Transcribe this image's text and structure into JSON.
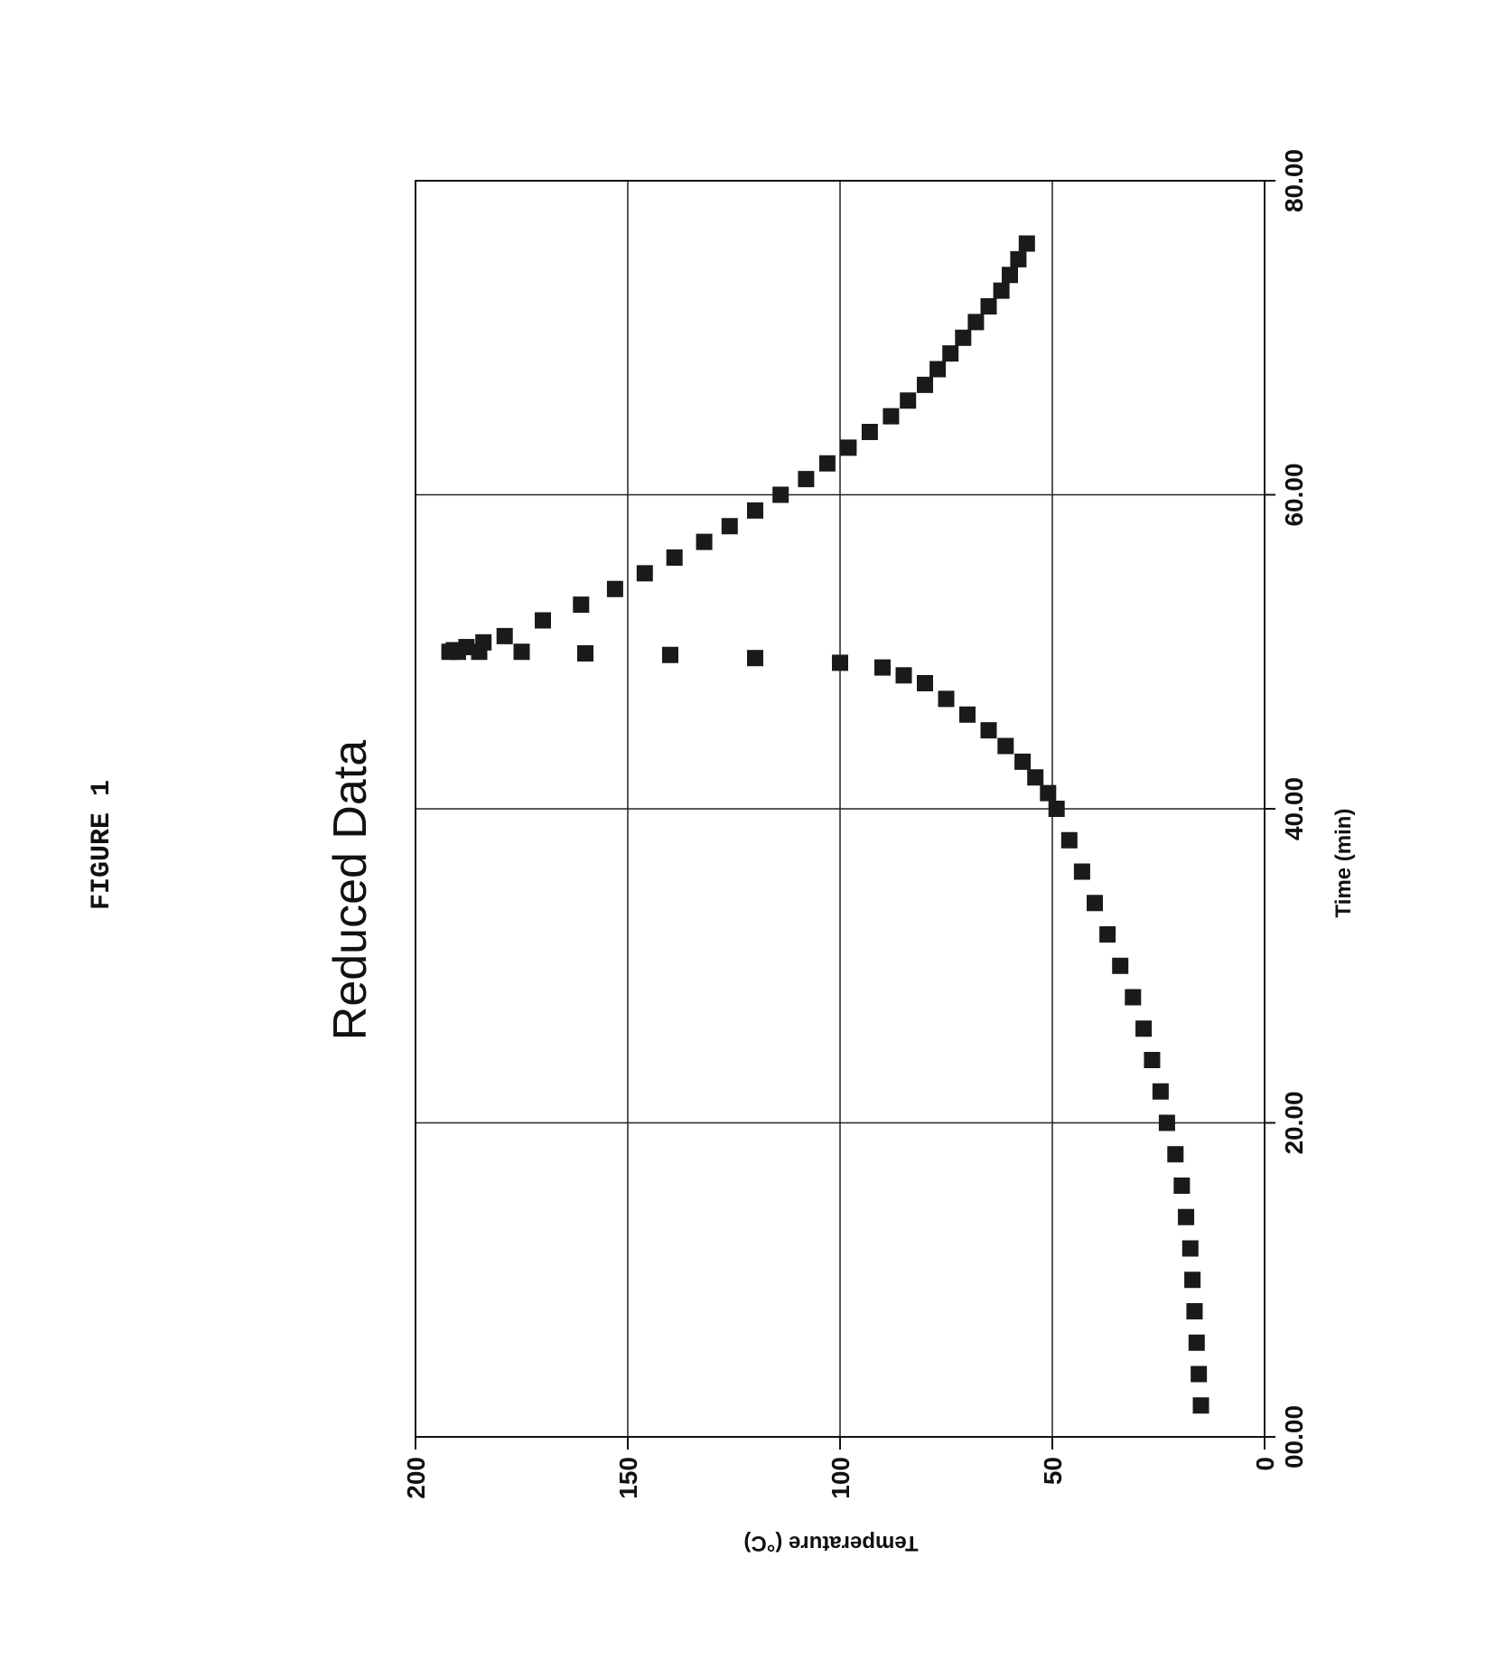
{
  "figure_label": "FIGURE 1",
  "chart_data": {
    "type": "scatter",
    "title": "Reduced Data",
    "xlabel": "Time (min)",
    "ylabel": "Temperature (°C)",
    "xlim": [
      0,
      80
    ],
    "ylim": [
      0,
      200
    ],
    "x_tick_labels": [
      "00.00",
      "20.00",
      "40.00",
      "60.00",
      "80.00"
    ],
    "y_tick_labels": [
      "0",
      "50",
      "100",
      "150",
      "200"
    ],
    "grid": true,
    "marker_color": "#1a1a1a",
    "series": [
      {
        "x": [
          2,
          4,
          6,
          8,
          10,
          12,
          14,
          16,
          18,
          20,
          22,
          24,
          26,
          28,
          30,
          32,
          34,
          36,
          38,
          40,
          41,
          42,
          43,
          44,
          45,
          46,
          47,
          48,
          48.5,
          49,
          49.3,
          49.6,
          49.8,
          49.9,
          50,
          50,
          50,
          50,
          50.1,
          50.3,
          50.6,
          51,
          52,
          53,
          54,
          55,
          56,
          57,
          58,
          59,
          60,
          61,
          62,
          63,
          64,
          65,
          66,
          67,
          68,
          69,
          70,
          71,
          72,
          73,
          74,
          75,
          76
        ],
        "y": [
          15,
          15.5,
          16,
          16.5,
          17,
          17.5,
          18.5,
          19.5,
          21,
          23,
          24.5,
          26.5,
          28.5,
          31,
          34,
          37,
          40,
          43,
          46,
          49,
          51,
          54,
          57,
          61,
          65,
          70,
          75,
          80,
          85,
          90,
          100,
          120,
          140,
          160,
          175,
          185,
          190,
          192,
          191,
          188,
          184,
          179,
          170,
          161,
          153,
          146,
          139,
          132,
          126,
          120,
          114,
          108,
          103,
          98,
          93,
          88,
          84,
          80,
          77,
          74,
          71,
          68,
          65,
          62,
          60,
          58,
          56
        ]
      }
    ]
  }
}
